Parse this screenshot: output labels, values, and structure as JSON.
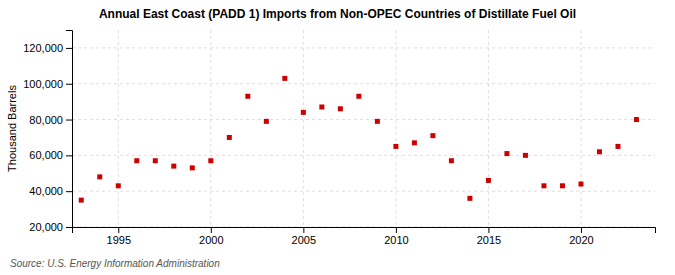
{
  "chart_data": {
    "type": "scatter",
    "title": "Annual East Coast (PADD 1) Imports from Non-OPEC Countries of Distillate Fuel Oil",
    "ylabel": "Thousand Barrels",
    "source": "Source: U.S. Energy Information Administration",
    "x": [
      1993,
      1994,
      1995,
      1996,
      1997,
      1998,
      1999,
      2000,
      2001,
      2002,
      2003,
      2004,
      2005,
      2006,
      2007,
      2008,
      2009,
      2010,
      2011,
      2012,
      2013,
      2014,
      2015,
      2016,
      2017,
      2018,
      2019,
      2020,
      2021,
      2022,
      2023
    ],
    "values": [
      35000,
      48000,
      43000,
      57000,
      57000,
      54000,
      53000,
      57000,
      70000,
      93000,
      79000,
      103000,
      84000,
      87000,
      86000,
      93000,
      79000,
      65000,
      67000,
      71000,
      57000,
      36000,
      46000,
      61000,
      60000,
      43000,
      43000,
      44000,
      62000,
      65000,
      80000
    ],
    "color": "#cc0000",
    "marker": "square",
    "xlim": [
      1992.5,
      2024
    ],
    "xticks": [
      1995,
      2000,
      2005,
      2010,
      2015,
      2020
    ],
    "ylim": [
      20000,
      130000
    ],
    "yticks": [
      {
        "value": 20000,
        "label": "20,000"
      },
      {
        "value": 40000,
        "label": "40,000"
      },
      {
        "value": 60000,
        "label": "60,000"
      },
      {
        "value": 80000,
        "label": "80,000"
      },
      {
        "value": 100000,
        "label": "100,000"
      },
      {
        "value": 120000,
        "label": "120,000"
      }
    ],
    "grid": true
  }
}
